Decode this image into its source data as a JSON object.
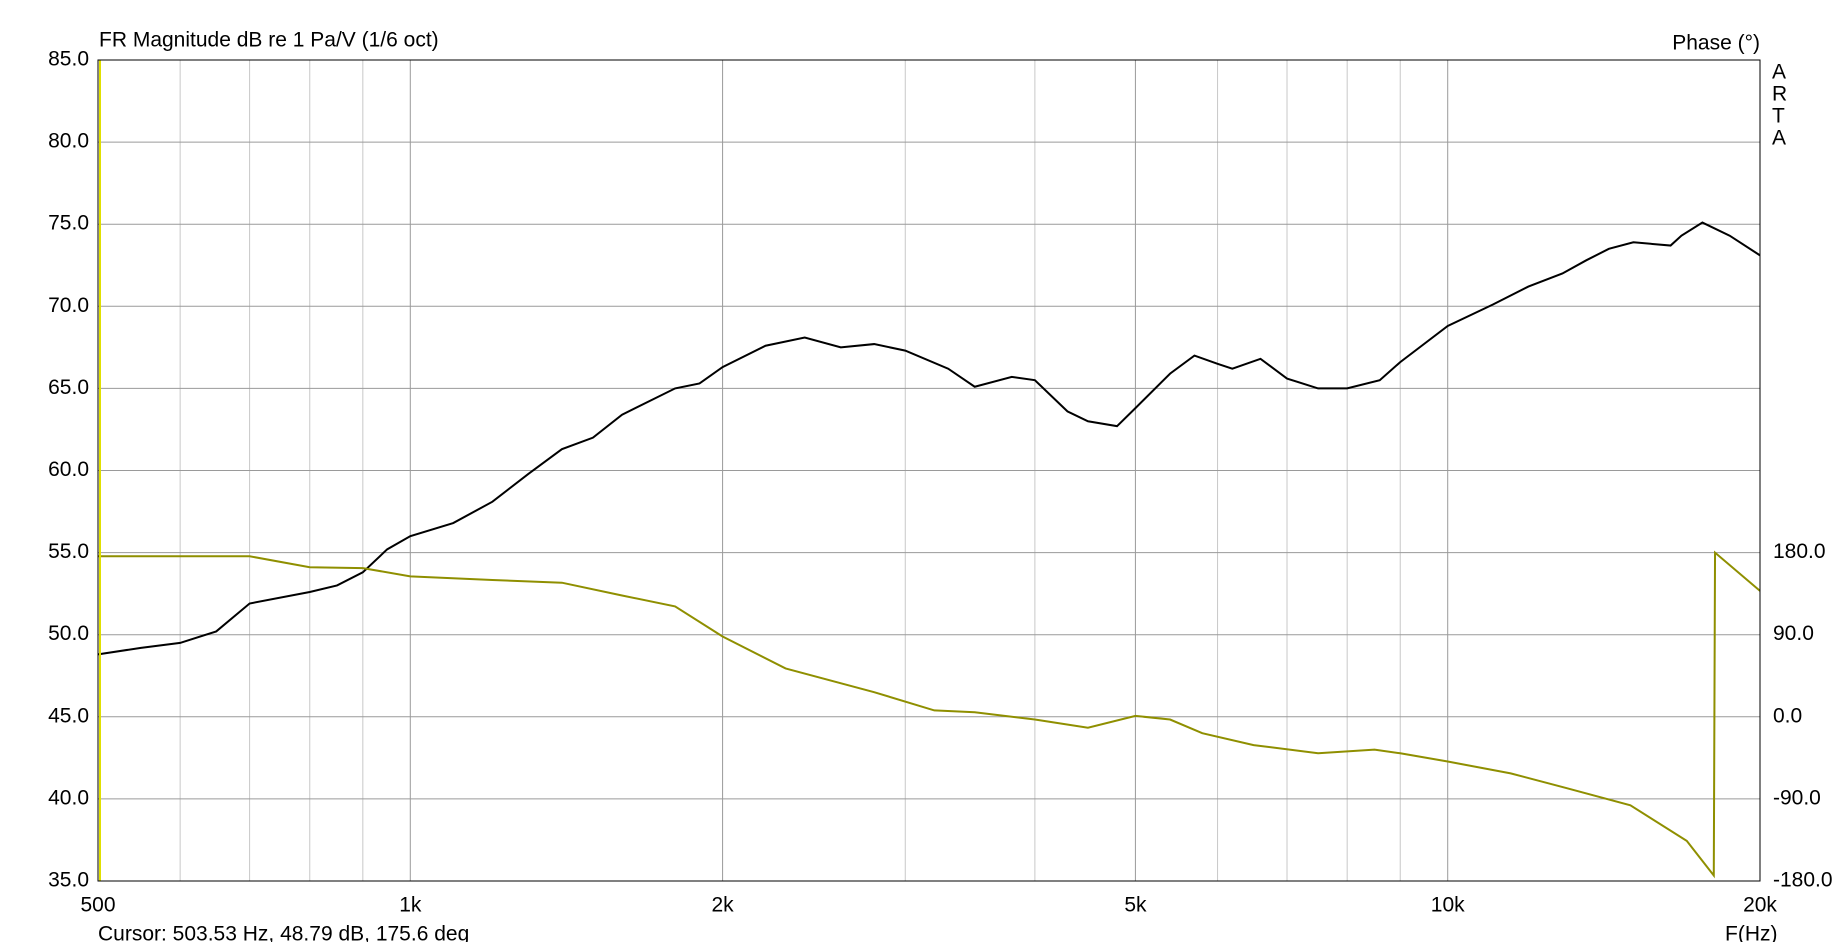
{
  "chart_data": {
    "type": "line",
    "title": "FR Magnitude dB re 1 Pa/V (1/6 oct)",
    "y2_label": "Phase (°)",
    "x_label": "F(Hz)",
    "watermark": "ARTA",
    "cursor_text": "Cursor: 503.53 Hz, 48.79 dB, 175.6 deg",
    "xscale": "log",
    "xlim": [
      500,
      20000
    ],
    "xticks": [
      500,
      {
        "value": 1000,
        "label": "1k"
      },
      {
        "value": 2000,
        "label": "2k"
      },
      {
        "value": 5000,
        "label": "5k"
      },
      {
        "value": 10000,
        "label": "10k"
      },
      {
        "value": 20000,
        "label": "20k"
      }
    ],
    "xminor": [
      600,
      700,
      800,
      900,
      3000,
      4000,
      6000,
      7000,
      8000,
      9000
    ],
    "ylim": [
      35,
      85
    ],
    "yticks": [
      {
        "value": 35,
        "label": "35.0"
      },
      {
        "value": 40,
        "label": "40.0"
      },
      {
        "value": 45,
        "label": "45.0"
      },
      {
        "value": 50,
        "label": "50.0"
      },
      {
        "value": 55,
        "label": "55.0"
      },
      {
        "value": 60,
        "label": "60.0"
      },
      {
        "value": 65,
        "label": "65.0"
      },
      {
        "value": 70,
        "label": "70.0"
      },
      {
        "value": 75,
        "label": "75.0"
      },
      {
        "value": 80,
        "label": "80.0"
      },
      {
        "value": 85,
        "label": "85.0"
      }
    ],
    "y2lim": [
      -180,
      720
    ],
    "y2ticks": [
      {
        "value": -180,
        "label": "-180.0"
      },
      {
        "value": -90,
        "label": "-90.0"
      },
      {
        "value": 0,
        "label": "0.0"
      },
      {
        "value": 90,
        "label": "90.0"
      },
      {
        "value": 180,
        "label": "180.0"
      }
    ],
    "grid": true,
    "series": [
      {
        "name": "Magnitude",
        "color": "#000000",
        "x": [
          500,
          550,
          600,
          650,
          700,
          800,
          850,
          900,
          950,
          1000,
          1100,
          1200,
          1300,
          1400,
          1500,
          1600,
          1800,
          1900,
          2000,
          2200,
          2400,
          2600,
          2800,
          3000,
          3300,
          3500,
          3800,
          4000,
          4300,
          4500,
          4800,
          5000,
          5400,
          5700,
          6000,
          6200,
          6600,
          7000,
          7500,
          8000,
          8600,
          9000,
          10000,
          11050,
          11960,
          12900,
          13600,
          14300,
          15100,
          16400,
          16800,
          17600,
          18700,
          20000
        ],
        "values": [
          48.8,
          49.2,
          49.5,
          50.2,
          51.9,
          52.6,
          53.0,
          53.8,
          55.2,
          56.0,
          56.8,
          58.1,
          59.8,
          61.3,
          62.0,
          63.4,
          65.0,
          65.3,
          66.3,
          67.6,
          68.1,
          67.5,
          67.7,
          67.3,
          66.2,
          65.1,
          65.7,
          65.5,
          63.6,
          63.0,
          62.7,
          63.8,
          65.9,
          67.0,
          66.5,
          66.2,
          66.8,
          65.6,
          65.0,
          65.0,
          65.5,
          66.6,
          68.8,
          70.1,
          71.2,
          72.0,
          72.8,
          73.5,
          73.9,
          73.7,
          74.3,
          75.1,
          74.3,
          73.1
        ]
      },
      {
        "name": "Phase",
        "color": "#8f8f00",
        "axis": "y2",
        "x": [
          500,
          700,
          800,
          900,
          1000,
          1200,
          1400,
          1600,
          1800,
          2000,
          2300,
          2800,
          3200,
          3500,
          4000,
          4500,
          5000,
          5400,
          5800,
          6500,
          7500,
          8500,
          9000,
          10000,
          11500,
          13000,
          15000,
          17000,
          18050,
          18100,
          20000
        ],
        "values": [
          176,
          176,
          164,
          163,
          154,
          150,
          147,
          133,
          121,
          88,
          53,
          27,
          7,
          5,
          -3,
          -12,
          1,
          -3,
          -18,
          -31,
          -40,
          -36,
          -40,
          -49,
          -62,
          -78,
          -97,
          -136,
          -174,
          180,
          138
        ]
      }
    ]
  }
}
